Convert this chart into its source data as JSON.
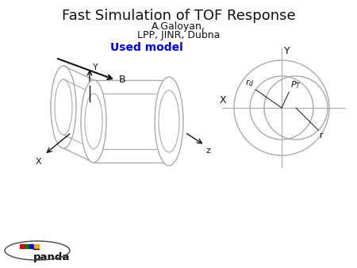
{
  "title": "Fast Simulation of TOF Response",
  "subtitle1": "A.Galoyan,",
  "subtitle2": "LPP, JINR, Dubna",
  "used_model": "Used model",
  "used_model_color": "#0000EE",
  "bg_color": "#ffffff",
  "line_color": "#aaaaaa",
  "dark_color": "#111111",
  "panda_colors": [
    "#dd0000",
    "#007700",
    "#0000dd",
    "#ffaa00"
  ],
  "title_fontsize": 13,
  "sub_fontsize": 9,
  "used_model_fontsize": 10
}
